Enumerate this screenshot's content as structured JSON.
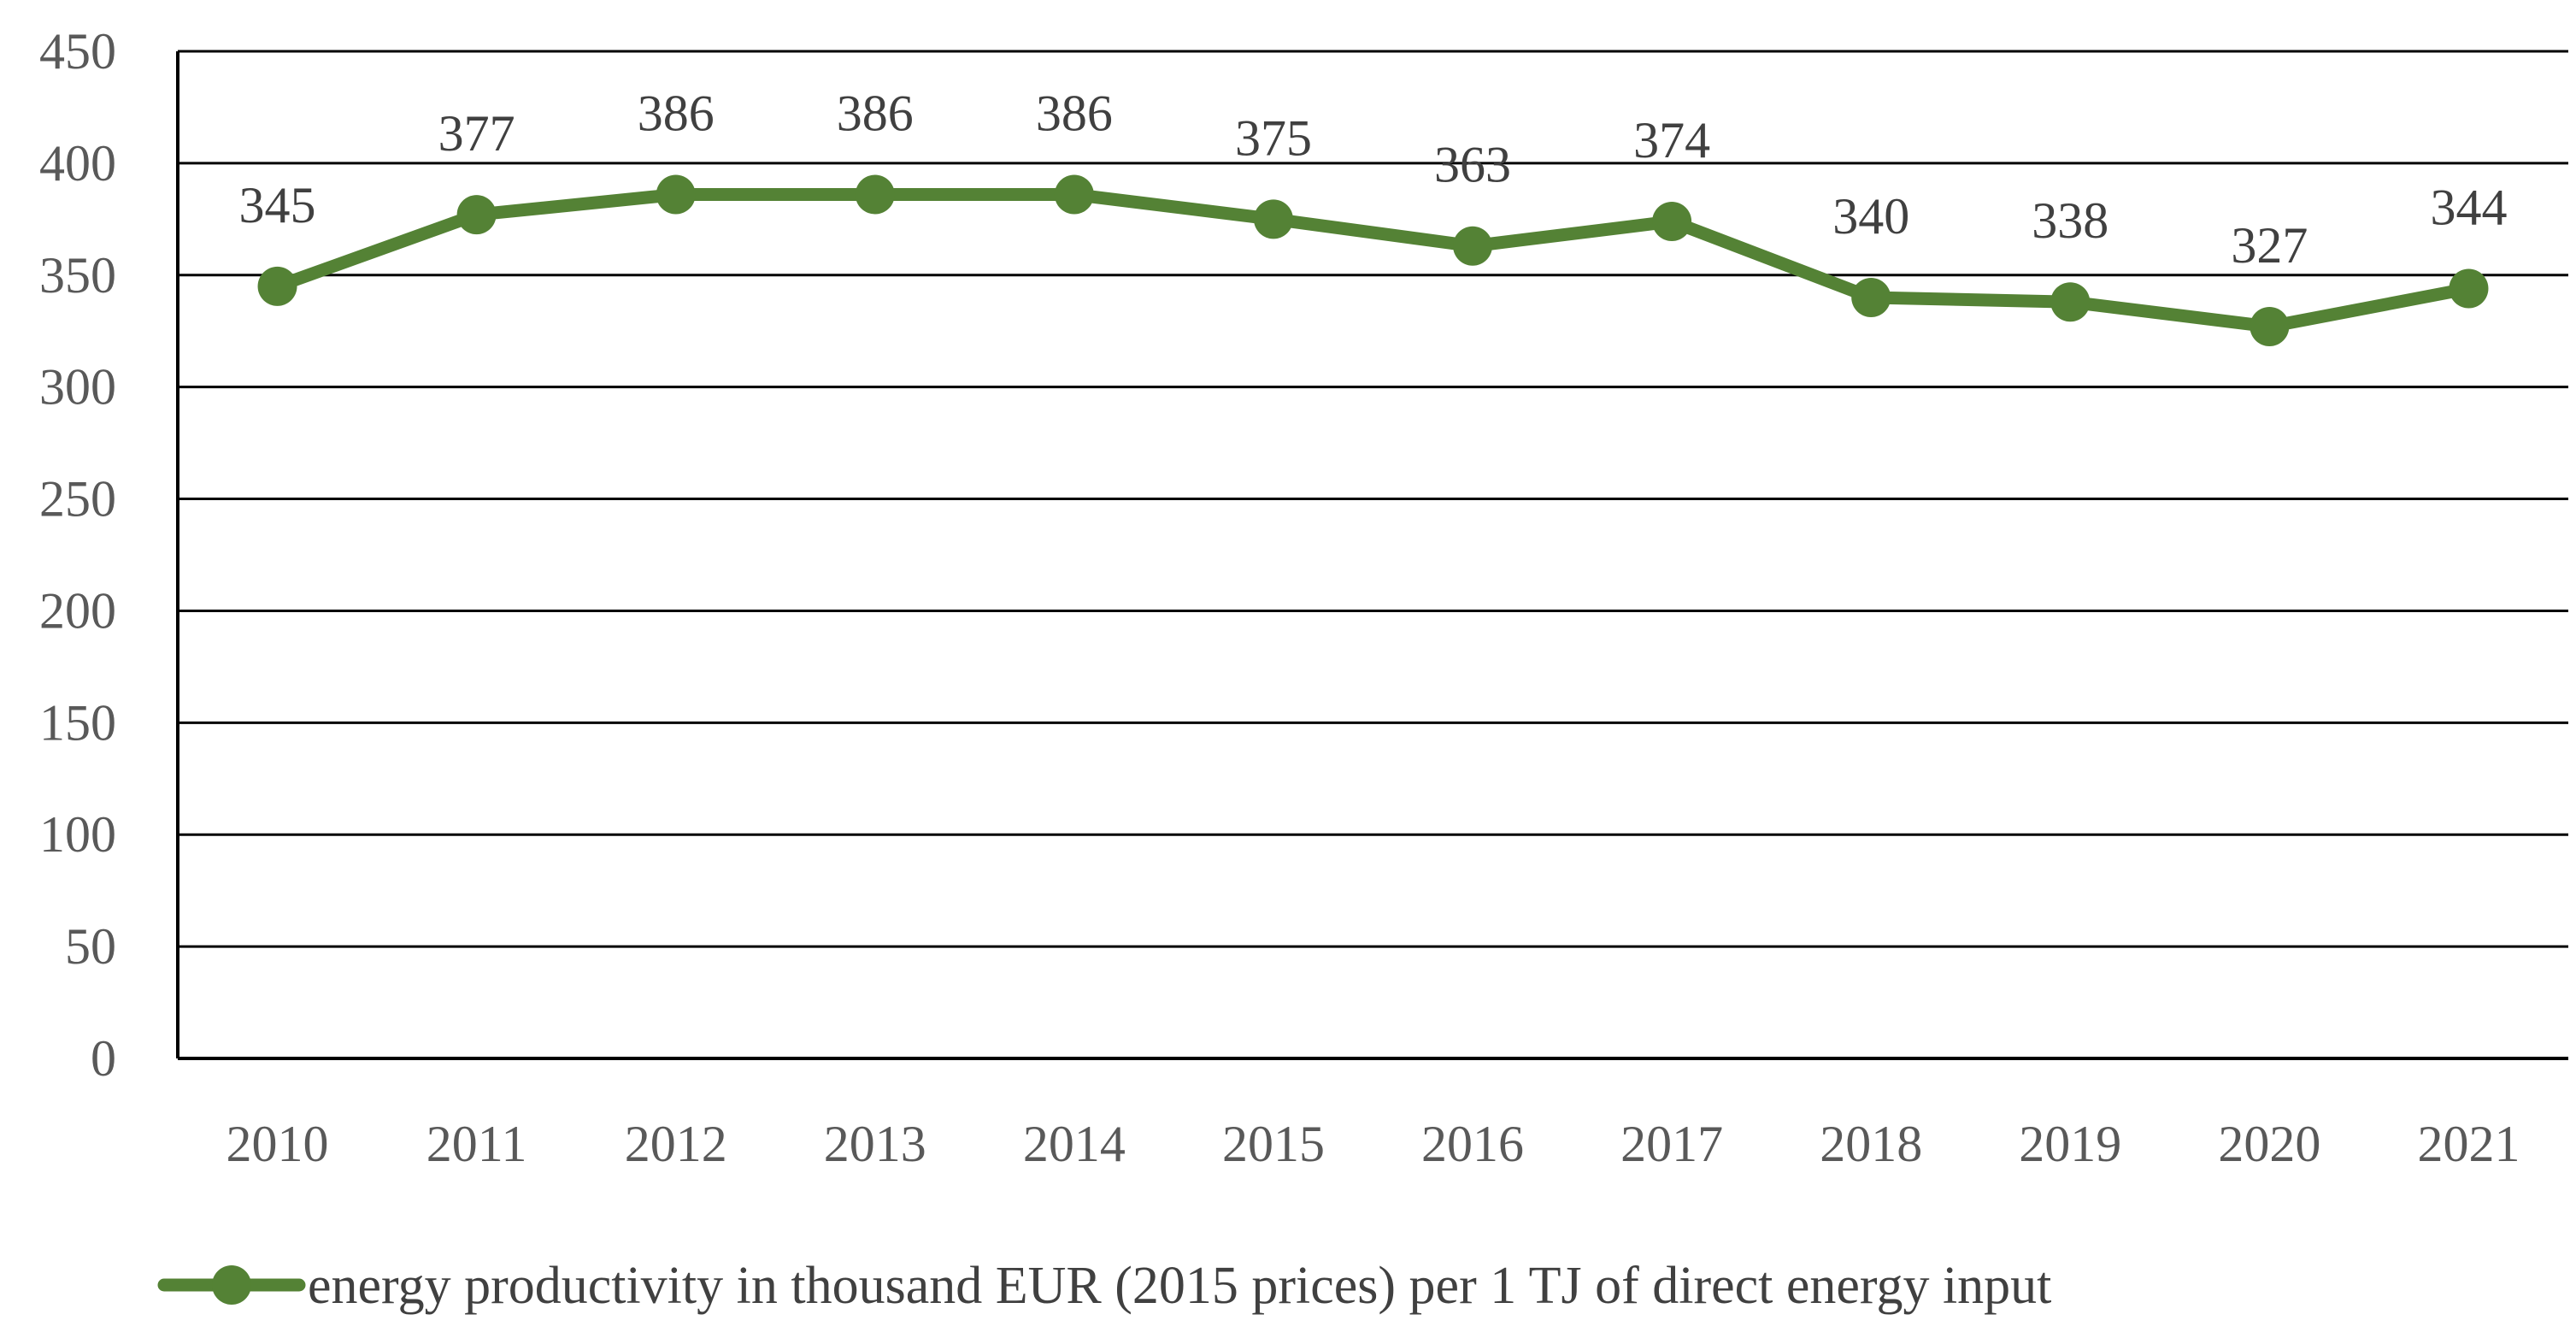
{
  "chart_data": {
    "type": "line",
    "title": "",
    "xlabel": "",
    "ylabel": "",
    "ylim": [
      0,
      450
    ],
    "yticks": [
      0,
      50,
      100,
      150,
      200,
      250,
      300,
      350,
      400,
      450
    ],
    "grid": true,
    "legend_position": "bottom",
    "categories": [
      "2010",
      "2011",
      "2012",
      "2013",
      "2014",
      "2015",
      "2016",
      "2017",
      "2018",
      "2019",
      "2020",
      "2021"
    ],
    "series": [
      {
        "name": "energy productivity in thousand EUR (2015 prices) per 1 TJ of direct energy input",
        "values": [
          345,
          377,
          386,
          386,
          386,
          375,
          363,
          374,
          340,
          338,
          327,
          344
        ],
        "color": "#548235"
      }
    ]
  }
}
